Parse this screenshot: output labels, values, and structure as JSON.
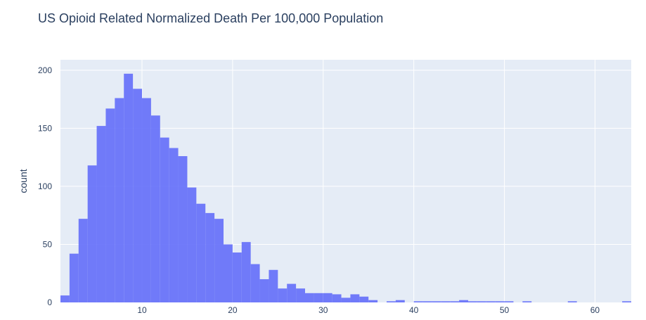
{
  "chart_data": {
    "type": "bar",
    "title": "US Opioid Related Normalized Death Per 100,000 Population",
    "xlabel": "",
    "ylabel": "count",
    "bin_size": 1,
    "bin_start": 1,
    "xlim": [
      1,
      64
    ],
    "ylim": [
      0,
      209
    ],
    "x_ticks": [
      10,
      20,
      30,
      40,
      50,
      60
    ],
    "y_ticks": [
      0,
      50,
      100,
      150,
      200
    ],
    "grid": true,
    "bar_color": "#636efa",
    "bar_opacity": 0.9,
    "plot_background": "#e5ecf6",
    "values": [
      6,
      42,
      72,
      118,
      152,
      167,
      176,
      197,
      184,
      176,
      161,
      142,
      133,
      126,
      99,
      85,
      77,
      72,
      50,
      43,
      52,
      33,
      20,
      28,
      12,
      16,
      12,
      8,
      8,
      8,
      7,
      4,
      7,
      5,
      2,
      0,
      1,
      2,
      0,
      1,
      1,
      1,
      1,
      1,
      2,
      1,
      1,
      1,
      1,
      1,
      0,
      1,
      0,
      0,
      0,
      0,
      1,
      0,
      0,
      0,
      0,
      0,
      1
    ]
  }
}
